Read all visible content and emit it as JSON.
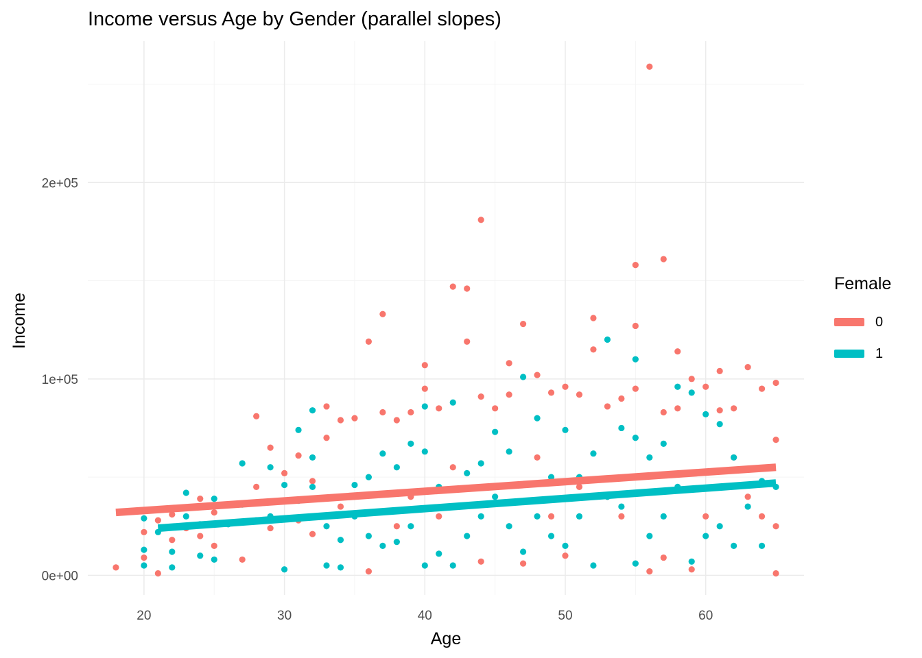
{
  "chart_data": {
    "type": "scatter",
    "title": "Income versus Age by Gender (parallel slopes)",
    "xlabel": "Age",
    "ylabel": "Income",
    "xlim": [
      16,
      67
    ],
    "ylim": [
      -10000,
      272000
    ],
    "x_ticks": [
      20,
      30,
      40,
      50,
      60
    ],
    "x_tick_labels": [
      "20",
      "30",
      "40",
      "50",
      "60"
    ],
    "y_ticks": [
      0,
      100000,
      200000
    ],
    "y_tick_labels": [
      "0e+00",
      "1e+05",
      "2e+05"
    ],
    "grid": true,
    "legend": {
      "title": "Female",
      "position": "right"
    },
    "series": [
      {
        "name": "0",
        "color": "#F8766D",
        "fit_line": {
          "x": [
            18,
            65
          ],
          "y": [
            32000,
            55000
          ]
        },
        "points": [
          [
            18,
            4000
          ],
          [
            20,
            22000
          ],
          [
            20,
            9000
          ],
          [
            21,
            1000
          ],
          [
            21,
            28000
          ],
          [
            22,
            31000
          ],
          [
            22,
            18000
          ],
          [
            23,
            24000
          ],
          [
            24,
            39000
          ],
          [
            24,
            20000
          ],
          [
            25,
            32000
          ],
          [
            25,
            15000
          ],
          [
            26,
            36000
          ],
          [
            27,
            27000
          ],
          [
            27,
            8000
          ],
          [
            28,
            81000
          ],
          [
            28,
            45000
          ],
          [
            29,
            65000
          ],
          [
            29,
            24000
          ],
          [
            30,
            52000
          ],
          [
            30,
            38000
          ],
          [
            31,
            61000
          ],
          [
            31,
            28000
          ],
          [
            32,
            48000
          ],
          [
            32,
            21000
          ],
          [
            33,
            86000
          ],
          [
            33,
            70000
          ],
          [
            34,
            79000
          ],
          [
            34,
            35000
          ],
          [
            35,
            80000
          ],
          [
            35,
            40000
          ],
          [
            36,
            119000
          ],
          [
            36,
            2000
          ],
          [
            37,
            133000
          ],
          [
            37,
            83000
          ],
          [
            38,
            79000
          ],
          [
            38,
            25000
          ],
          [
            39,
            83000
          ],
          [
            39,
            40000
          ],
          [
            40,
            107000
          ],
          [
            40,
            95000
          ],
          [
            41,
            85000
          ],
          [
            41,
            30000
          ],
          [
            42,
            147000
          ],
          [
            42,
            55000
          ],
          [
            43,
            146000
          ],
          [
            43,
            119000
          ],
          [
            44,
            181000
          ],
          [
            44,
            91000
          ],
          [
            44,
            7000
          ],
          [
            45,
            85000
          ],
          [
            45,
            45000
          ],
          [
            46,
            108000
          ],
          [
            46,
            92000
          ],
          [
            47,
            128000
          ],
          [
            47,
            6000
          ],
          [
            48,
            102000
          ],
          [
            48,
            60000
          ],
          [
            49,
            93000
          ],
          [
            49,
            30000
          ],
          [
            50,
            96000
          ],
          [
            50,
            10000
          ],
          [
            51,
            92000
          ],
          [
            51,
            45000
          ],
          [
            52,
            131000
          ],
          [
            52,
            115000
          ],
          [
            53,
            86000
          ],
          [
            53,
            40000
          ],
          [
            54,
            90000
          ],
          [
            54,
            30000
          ],
          [
            55,
            158000
          ],
          [
            55,
            127000
          ],
          [
            55,
            95000
          ],
          [
            56,
            259000
          ],
          [
            56,
            2000
          ],
          [
            57,
            161000
          ],
          [
            57,
            83000
          ],
          [
            57,
            9000
          ],
          [
            58,
            114000
          ],
          [
            58,
            85000
          ],
          [
            59,
            100000
          ],
          [
            59,
            3000
          ],
          [
            60,
            96000
          ],
          [
            60,
            30000
          ],
          [
            61,
            104000
          ],
          [
            61,
            84000
          ],
          [
            62,
            85000
          ],
          [
            62,
            60000
          ],
          [
            63,
            106000
          ],
          [
            63,
            40000
          ],
          [
            64,
            95000
          ],
          [
            64,
            30000
          ],
          [
            65,
            98000
          ],
          [
            65,
            69000
          ],
          [
            65,
            25000
          ],
          [
            65,
            1000
          ]
        ]
      },
      {
        "name": "1",
        "color": "#00BFC4",
        "fit_line": {
          "x": [
            21,
            65
          ],
          "y": [
            24000,
            47000
          ]
        },
        "points": [
          [
            20,
            29000
          ],
          [
            20,
            13000
          ],
          [
            20,
            5000
          ],
          [
            21,
            22000
          ],
          [
            22,
            12000
          ],
          [
            22,
            4000
          ],
          [
            23,
            42000
          ],
          [
            23,
            30000
          ],
          [
            24,
            26000
          ],
          [
            24,
            10000
          ],
          [
            25,
            39000
          ],
          [
            25,
            8000
          ],
          [
            26,
            26000
          ],
          [
            27,
            57000
          ],
          [
            27,
            36000
          ],
          [
            28,
            28000
          ],
          [
            29,
            55000
          ],
          [
            29,
            30000
          ],
          [
            30,
            46000
          ],
          [
            30,
            3000
          ],
          [
            31,
            74000
          ],
          [
            31,
            38000
          ],
          [
            32,
            84000
          ],
          [
            32,
            60000
          ],
          [
            32,
            45000
          ],
          [
            33,
            25000
          ],
          [
            33,
            5000
          ],
          [
            34,
            18000
          ],
          [
            34,
            4000
          ],
          [
            35,
            46000
          ],
          [
            35,
            30000
          ],
          [
            36,
            50000
          ],
          [
            36,
            20000
          ],
          [
            37,
            62000
          ],
          [
            37,
            15000
          ],
          [
            38,
            55000
          ],
          [
            38,
            17000
          ],
          [
            39,
            67000
          ],
          [
            39,
            25000
          ],
          [
            40,
            86000
          ],
          [
            40,
            63000
          ],
          [
            40,
            5000
          ],
          [
            41,
            45000
          ],
          [
            41,
            11000
          ],
          [
            42,
            88000
          ],
          [
            42,
            5000
          ],
          [
            43,
            52000
          ],
          [
            43,
            20000
          ],
          [
            44,
            57000
          ],
          [
            44,
            30000
          ],
          [
            45,
            73000
          ],
          [
            45,
            40000
          ],
          [
            46,
            63000
          ],
          [
            46,
            25000
          ],
          [
            47,
            101000
          ],
          [
            47,
            12000
          ],
          [
            48,
            80000
          ],
          [
            48,
            30000
          ],
          [
            49,
            50000
          ],
          [
            49,
            20000
          ],
          [
            50,
            74000
          ],
          [
            50,
            15000
          ],
          [
            51,
            50000
          ],
          [
            51,
            30000
          ],
          [
            52,
            62000
          ],
          [
            52,
            5000
          ],
          [
            53,
            120000
          ],
          [
            53,
            40000
          ],
          [
            54,
            75000
          ],
          [
            54,
            35000
          ],
          [
            55,
            110000
          ],
          [
            55,
            70000
          ],
          [
            55,
            6000
          ],
          [
            56,
            60000
          ],
          [
            56,
            20000
          ],
          [
            57,
            67000
          ],
          [
            57,
            30000
          ],
          [
            58,
            96000
          ],
          [
            58,
            45000
          ],
          [
            59,
            93000
          ],
          [
            59,
            7000
          ],
          [
            60,
            82000
          ],
          [
            60,
            20000
          ],
          [
            61,
            77000
          ],
          [
            61,
            25000
          ],
          [
            62,
            60000
          ],
          [
            62,
            15000
          ],
          [
            63,
            35000
          ],
          [
            64,
            48000
          ],
          [
            64,
            15000
          ],
          [
            65,
            45000
          ]
        ]
      }
    ]
  }
}
